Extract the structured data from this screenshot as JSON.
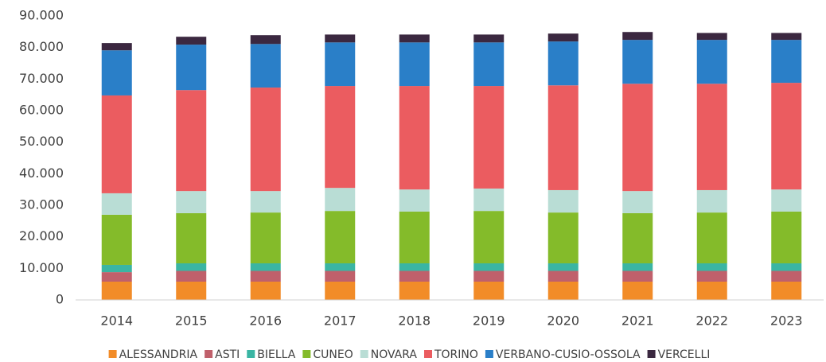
{
  "chart_data": {
    "type": "stacked_bar",
    "categories": [
      "2014",
      "2015",
      "2016",
      "2017",
      "2018",
      "2019",
      "2020",
      "2021",
      "2022",
      "2023"
    ],
    "series": [
      {
        "name": "ALESSANDRIA",
        "color": "#f28c28",
        "values": [
          5800,
          5800,
          5800,
          5800,
          5800,
          5800,
          5800,
          5800,
          5800,
          5800
        ]
      },
      {
        "name": "ASTI",
        "color": "#c0606b",
        "values": [
          3000,
          3400,
          3400,
          3400,
          3400,
          3400,
          3400,
          3400,
          3400,
          3400
        ]
      },
      {
        "name": "BIELLA",
        "color": "#3ab5a3",
        "values": [
          2300,
          2400,
          2400,
          2400,
          2400,
          2400,
          2400,
          2400,
          2400,
          2400
        ]
      },
      {
        "name": "CUNEO",
        "color": "#84bb2a",
        "values": [
          15900,
          15900,
          16100,
          16600,
          16400,
          16600,
          16100,
          15900,
          16100,
          16400
        ]
      },
      {
        "name": "NOVARA",
        "color": "#b9ddd5",
        "values": [
          6800,
          7000,
          6800,
          7300,
          7000,
          7100,
          7100,
          7000,
          7100,
          7000
        ]
      },
      {
        "name": "TORINO",
        "color": "#eb5c60",
        "values": [
          31000,
          32000,
          32800,
          32300,
          32800,
          32500,
          33200,
          34000,
          33700,
          33800
        ]
      },
      {
        "name": "VERBANO-CUSIO-OSSOLA",
        "color": "#2a7fc8",
        "values": [
          14300,
          14400,
          13800,
          13800,
          13800,
          13800,
          13900,
          13900,
          13900,
          13600
        ]
      },
      {
        "name": "VERCELLI",
        "color": "#3b2840",
        "values": [
          2300,
          2500,
          2800,
          2500,
          2500,
          2500,
          2500,
          2500,
          2200,
          2200
        ]
      }
    ],
    "ylim": [
      0,
      90000
    ],
    "yticks": [
      0,
      {
        "value": 10000,
        "label": "10.000"
      },
      {
        "value": 20000,
        "label": "20.000"
      },
      {
        "value": 30000,
        "label": "30.000"
      },
      {
        "value": 40000,
        "label": "40.000"
      },
      {
        "value": 50000,
        "label": "50.000"
      },
      {
        "value": 60000,
        "label": "60.000"
      },
      {
        "value": 70000,
        "label": "70.000"
      },
      {
        "value": 80000,
        "label": "80.000"
      },
      {
        "value": 90000,
        "label": "90.000"
      }
    ],
    "legend": "bottom"
  }
}
